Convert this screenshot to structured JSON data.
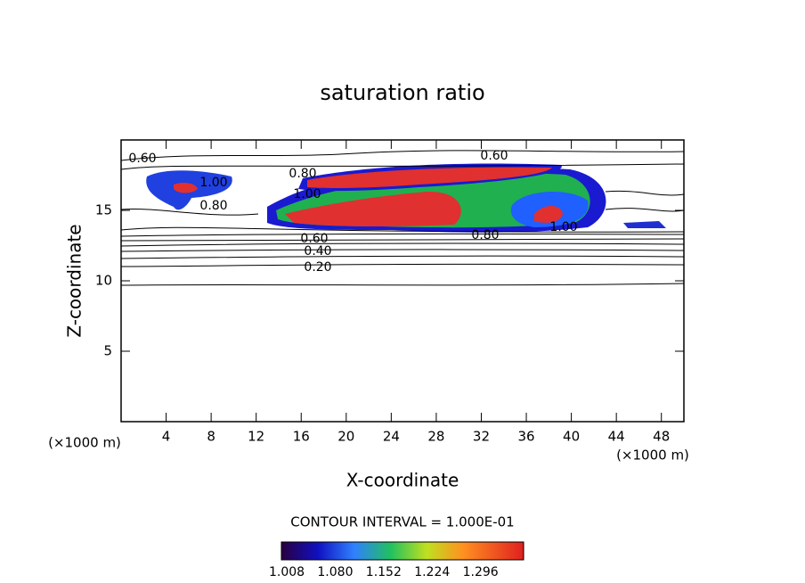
{
  "chart_data": {
    "type": "contour",
    "title": "saturation ratio",
    "x_label": "X-coordinate",
    "y_label": "Z-coordinate",
    "x_unit": "(×1000 m)",
    "y_unit": "(×1000 m)",
    "xlim": [
      0,
      50
    ],
    "ylim": [
      0,
      20
    ],
    "xticks": [
      4,
      8,
      12,
      16,
      20,
      24,
      28,
      32,
      36,
      40,
      44,
      48
    ],
    "yticks": [
      5,
      10,
      15
    ],
    "contour_interval_label": "CONTOUR INTERVAL = 1.000E-01",
    "contour_labels": [
      {
        "value": 0.6,
        "label": "0.60"
      },
      {
        "value": 1,
        "label": "1.00"
      },
      {
        "value": 0.8,
        "label": "0.80"
      },
      {
        "value": 0.8,
        "label": "0.80"
      },
      {
        "value": 1,
        "label": "1.00"
      },
      {
        "value": 0.6,
        "label": "0.60"
      },
      {
        "value": 0.6,
        "label": "0.60"
      },
      {
        "value": 0.4,
        "label": "0.40"
      },
      {
        "value": 0.2,
        "label": "0.20"
      },
      {
        "value": 0.8,
        "label": "0.80"
      },
      {
        "value": 1,
        "label": "1.00"
      }
    ],
    "colorbar": {
      "clim": [
        1.0,
        1.36
      ],
      "ticks": [
        1.008,
        {
          "value": 1.08,
          "label": "1.080"
        },
        1.152,
        1.224,
        1.296
      ]
    }
  }
}
